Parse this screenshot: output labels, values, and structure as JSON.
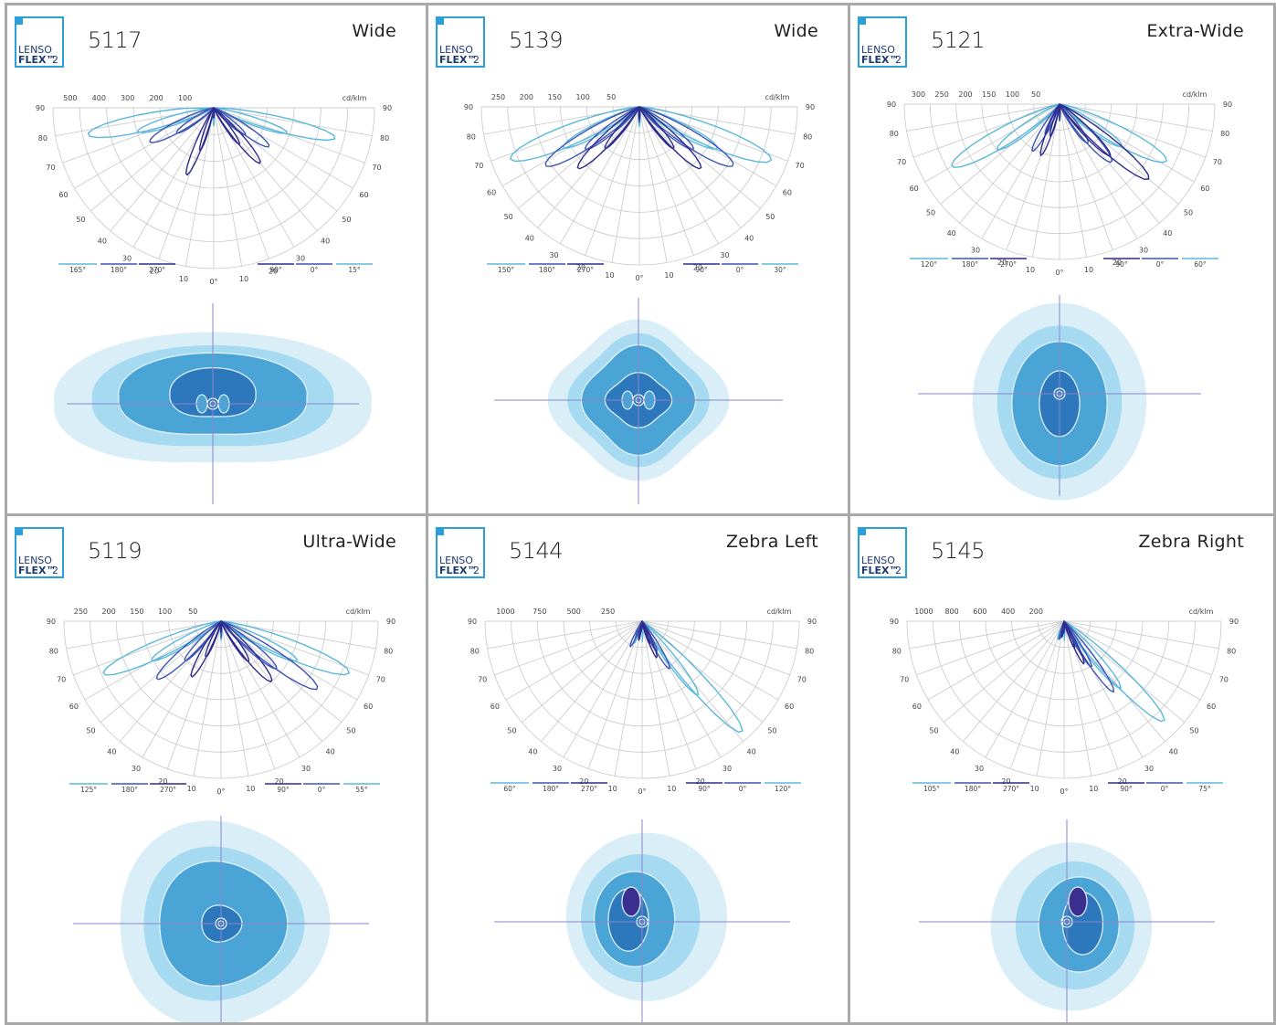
{
  "logo": {
    "line1": "LENSO",
    "line2": "FLEX",
    "tm": "™",
    "num": "2"
  },
  "unit": "cd/klm",
  "colors": {
    "frame": "#a9a9a9",
    "grid": "#c8c8c8",
    "series_a": "#5bb8dc",
    "series_b": "#3f55b5",
    "series_c": "#2e2b8f",
    "iso_outer": "#d9eef7",
    "iso_2": "#a6daf1",
    "iso_3": "#4aa5d6",
    "iso_4": "#2d77bd",
    "iso_core": "#3a2e8e",
    "crosshair": "#8a85cc"
  },
  "panels": [
    {
      "code": "5117",
      "distribution": "Wide",
      "radial_labels": [
        "500",
        "400",
        "300",
        "200",
        "100"
      ],
      "angle_labels": [
        "90",
        "80",
        "70",
        "60",
        "50",
        "40",
        "30",
        "20",
        "10",
        "0°",
        "10",
        "20",
        "30",
        "40",
        "50",
        "60",
        "70",
        "80",
        "90"
      ],
      "legend": [
        "165°",
        "180°",
        "270°",
        "90°",
        "0°",
        "15°"
      ]
    },
    {
      "code": "5139",
      "distribution": "Wide",
      "radial_labels": [
        "250",
        "200",
        "150",
        "100",
        "50"
      ],
      "angle_labels": [
        "90",
        "80",
        "70",
        "60",
        "50",
        "40",
        "30",
        "20",
        "10",
        "0°",
        "10",
        "20",
        "30",
        "40",
        "50",
        "60",
        "70",
        "80",
        "90"
      ],
      "legend": [
        "150°",
        "180°",
        "270°",
        "90°",
        "0°",
        "30°"
      ]
    },
    {
      "code": "5121",
      "distribution": "Extra-Wide",
      "radial_labels": [
        "300",
        "250",
        "200",
        "150",
        "100",
        "50"
      ],
      "angle_labels": [
        "90",
        "80",
        "70",
        "60",
        "50",
        "40",
        "30",
        "20",
        "10",
        "0°",
        "10",
        "20",
        "30",
        "40",
        "50",
        "60",
        "70",
        "80",
        "90"
      ],
      "legend": [
        "120°",
        "180°",
        "270°",
        "90°",
        "0°",
        "60°"
      ]
    },
    {
      "code": "5119",
      "distribution": "Ultra-Wide",
      "radial_labels": [
        "250",
        "200",
        "150",
        "100",
        "50"
      ],
      "angle_labels": [
        "90",
        "80",
        "70",
        "60",
        "50",
        "40",
        "30",
        "20",
        "10",
        "0°",
        "10",
        "20",
        "30",
        "40",
        "50",
        "60",
        "70",
        "80",
        "90"
      ],
      "legend": [
        "125°",
        "180°",
        "270°",
        "90°",
        "0°",
        "55°"
      ]
    },
    {
      "code": "5144",
      "distribution": "Zebra Left",
      "radial_labels": [
        "1000",
        "750",
        "500",
        "250"
      ],
      "angle_labels": [
        "90",
        "80",
        "70",
        "60",
        "50",
        "40",
        "30",
        "20",
        "10",
        "0°",
        "10",
        "20",
        "30",
        "40",
        "50",
        "60",
        "70",
        "80",
        "90"
      ],
      "legend": [
        "60°",
        "180°",
        "270°",
        "90°",
        "0°",
        "120°"
      ]
    },
    {
      "code": "5145",
      "distribution": "Zebra Right",
      "radial_labels": [
        "1000",
        "800",
        "600",
        "400",
        "200"
      ],
      "angle_labels": [
        "90",
        "80",
        "70",
        "60",
        "50",
        "40",
        "30",
        "20",
        "10",
        "0°",
        "10",
        "20",
        "30",
        "40",
        "50",
        "60",
        "70",
        "80",
        "90"
      ],
      "legend": [
        "105°",
        "180°",
        "270°",
        "90°",
        "0°",
        "75°"
      ]
    }
  ]
}
